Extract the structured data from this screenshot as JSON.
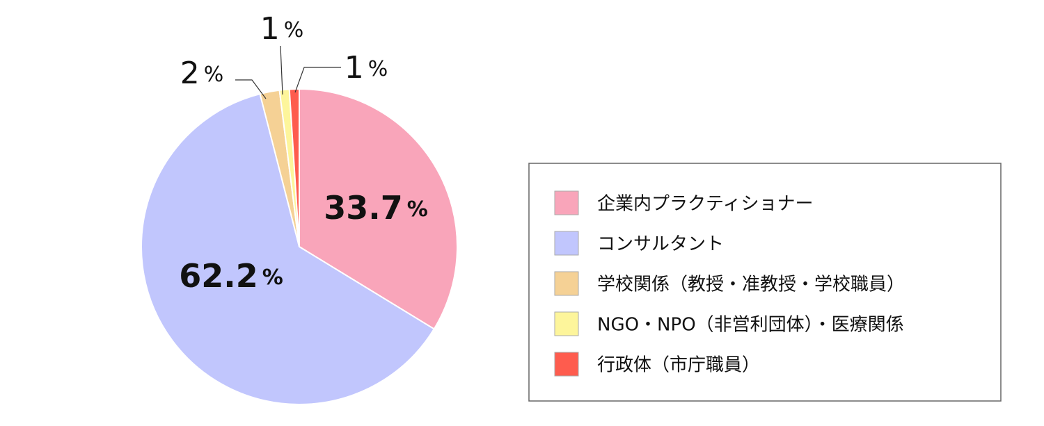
{
  "chart_data": {
    "type": "pie",
    "categories": [
      "企業内プラクティショナー",
      "コンサルタント",
      "学校関係（教授・准教授・学校職員）",
      "NGO・NPO（非営利団体）・医療関係",
      "行政体（市庁職員）"
    ],
    "values": [
      33.7,
      62.2,
      2,
      1,
      1
    ],
    "value_labels": [
      "33.7%",
      "62.2%",
      "2%",
      "1%",
      "1%"
    ],
    "colors": [
      "#f9a5ba",
      "#c1c6fd",
      "#f5d195",
      "#fdf59b",
      "#fe5c4e"
    ],
    "legend": "right"
  }
}
